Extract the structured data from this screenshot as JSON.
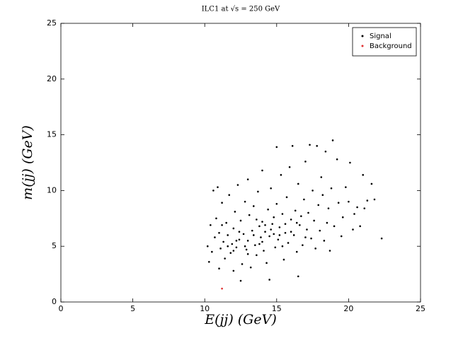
{
  "chart_data": {
    "type": "scatter",
    "title": "ILC1 at √s = 250 GeV",
    "x_label": "E(jj) (GeV)",
    "y_label": "m(jj) (GeV)",
    "xlim": [
      0,
      25
    ],
    "ylim": [
      0,
      25
    ],
    "xticks": [
      0,
      5,
      10,
      15,
      20,
      25
    ],
    "yticks": [
      0,
      5,
      10,
      15,
      20,
      25
    ],
    "grid": false,
    "legend_position": "upper-right",
    "series": [
      {
        "name": "Signal",
        "color": "#000000",
        "x": [
          10.2,
          10.3,
          10.4,
          10.5,
          10.6,
          10.7,
          10.8,
          10.9,
          11.0,
          11.0,
          11.1,
          11.2,
          11.3,
          11.4,
          11.5,
          11.6,
          11.7,
          11.8,
          11.9,
          12.0,
          12.0,
          12.1,
          12.2,
          12.3,
          12.4,
          12.5,
          12.5,
          12.6,
          12.7,
          12.8,
          12.9,
          13.0,
          13.0,
          13.1,
          13.2,
          13.3,
          13.4,
          13.5,
          13.6,
          13.7,
          13.8,
          13.9,
          14.0,
          14.0,
          14.1,
          14.2,
          14.3,
          14.4,
          14.5,
          14.5,
          14.6,
          14.7,
          14.8,
          14.9,
          15.0,
          15.0,
          15.1,
          15.2,
          15.3,
          15.4,
          15.5,
          15.6,
          15.7,
          15.8,
          15.9,
          16.0,
          16.1,
          16.2,
          16.3,
          16.4,
          16.5,
          16.5,
          16.6,
          16.7,
          16.8,
          16.9,
          17.0,
          17.1,
          17.2,
          17.3,
          17.4,
          17.5,
          17.6,
          17.7,
          17.8,
          17.9,
          18.0,
          18.1,
          18.2,
          18.3,
          18.4,
          18.5,
          18.6,
          18.7,
          18.8,
          18.9,
          19.0,
          19.2,
          19.3,
          19.5,
          19.6,
          19.8,
          20.0,
          20.1,
          20.3,
          20.4,
          20.6,
          20.8,
          21.0,
          21.1,
          21.3,
          21.6,
          21.8,
          22.3,
          12.2,
          12.8,
          13.4,
          13.8,
          14.2,
          14.6,
          15.2,
          15.6,
          16.0,
          13.0,
          12.4,
          11.6,
          14.0,
          14.8,
          15.4,
          16.4,
          17.0,
          12.0,
          11.2,
          13.6
        ],
        "y": [
          5.0,
          3.6,
          6.9,
          4.5,
          10.0,
          5.8,
          7.5,
          10.3,
          3.0,
          6.2,
          4.8,
          8.9,
          5.4,
          3.9,
          7.1,
          6.0,
          9.6,
          4.4,
          5.2,
          2.8,
          6.6,
          8.1,
          4.9,
          10.5,
          5.6,
          1.9,
          7.3,
          3.4,
          6.1,
          9.0,
          4.7,
          5.5,
          11.0,
          7.8,
          3.1,
          6.4,
          8.6,
          5.1,
          4.2,
          9.9,
          6.8,
          5.8,
          11.8,
          7.2,
          4.6,
          6.3,
          3.5,
          8.3,
          2.0,
          5.9,
          10.2,
          7.0,
          6.1,
          4.9,
          13.9,
          8.8,
          5.6,
          6.7,
          11.4,
          7.9,
          3.8,
          6.2,
          9.4,
          5.3,
          12.1,
          7.4,
          14.0,
          6.0,
          8.2,
          4.5,
          2.3,
          10.6,
          6.9,
          7.7,
          5.1,
          9.2,
          12.6,
          6.5,
          8.0,
          14.1,
          5.7,
          10.0,
          7.3,
          4.8,
          14.0,
          8.7,
          6.4,
          11.2,
          9.6,
          5.5,
          13.5,
          7.1,
          8.4,
          4.6,
          10.2,
          14.5,
          6.8,
          12.8,
          8.9,
          5.9,
          7.6,
          10.3,
          9.0,
          12.5,
          6.5,
          7.9,
          8.5,
          6.8,
          11.4,
          8.4,
          9.1,
          10.6,
          9.2,
          5.7,
          5.5,
          5.0,
          6.0,
          5.2,
          6.9,
          6.5,
          6.0,
          7.0,
          6.3,
          4.3,
          6.3,
          5.0,
          5.4,
          7.6,
          5.0,
          7.1,
          5.8,
          4.6,
          6.9,
          7.4
        ]
      },
      {
        "name": "Background",
        "color": "#e03030",
        "x": [
          11.2
        ],
        "y": [
          1.2
        ]
      }
    ]
  }
}
